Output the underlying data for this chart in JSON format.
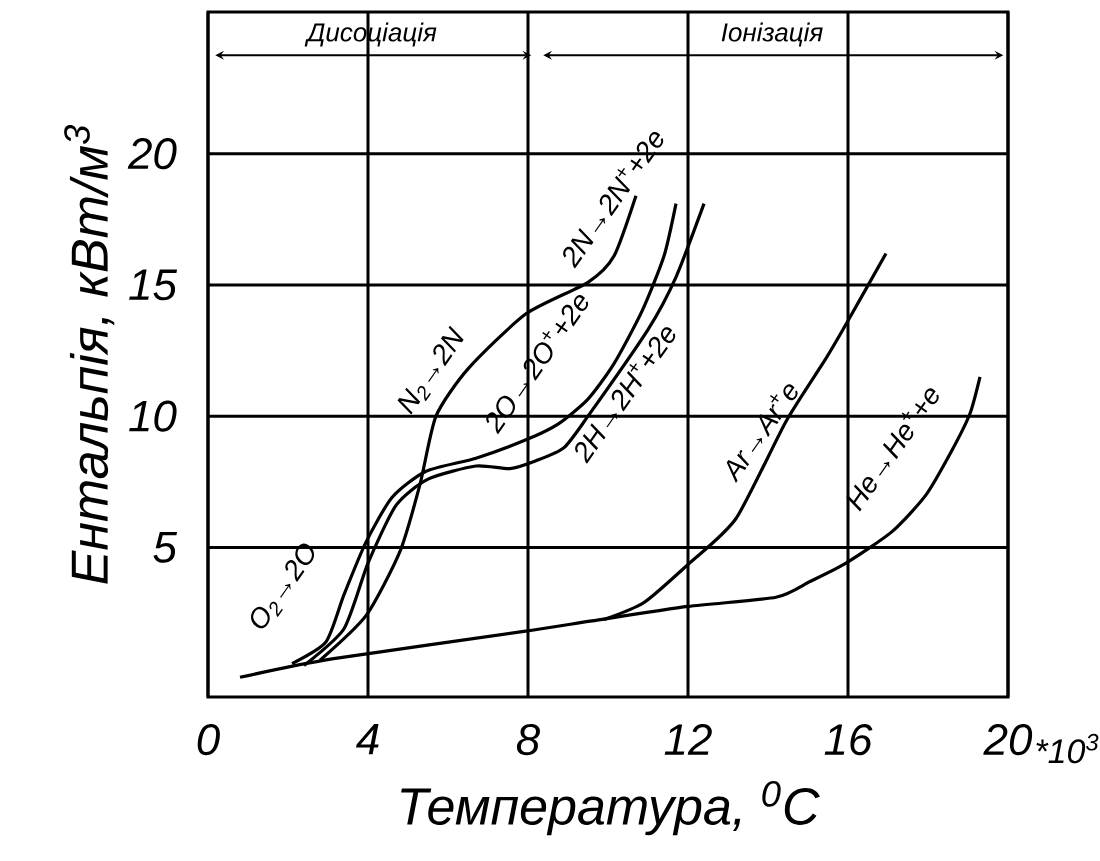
{
  "chart_data": {
    "type": "line",
    "xlabel": "Температура, $^{0}$C",
    "ylabel": "Ентальпія, кВт/м$^{3}$",
    "xlim": [
      0,
      20
    ],
    "ylim": [
      -0.7,
      25.4
    ],
    "xticks": [
      0,
      4,
      8,
      12,
      16,
      20
    ],
    "yticks": [
      5,
      10,
      15,
      20
    ],
    "grid": true,
    "marker": "none",
    "line_style": "solid",
    "series": [
      {
        "color": "#000000",
        "x": [
          0.8,
          3.1,
          7.9,
          9.6,
          12,
          14.2,
          15.05,
          15.95,
          17.1,
          17.95,
          18.6,
          19.05,
          19.3
        ],
        "values": [
          0.05,
          0.75,
          1.8,
          2.2,
          2.75,
          3.1,
          3.7,
          4.4,
          5.6,
          7.0,
          8.7,
          10.1,
          11.5
        ]
      },
      {
        "color": "#000000",
        "x": [
          9.9,
          10.9,
          12,
          13.2,
          14.45,
          15.45,
          15.95,
          16.95
        ],
        "values": [
          2.25,
          2.9,
          4.35,
          6.1,
          9.8,
          12.2,
          13.5,
          16.2
        ]
      },
      {
        "color": "#000000",
        "x": [
          2.1,
          2.95,
          3.4,
          3.95,
          4.6,
          5.45,
          6.7,
          7.95,
          8.75,
          9.5,
          10.15,
          10.85,
          11.4,
          11.7
        ],
        "values": [
          0.57,
          1.4,
          3.2,
          5.2,
          6.9,
          7.9,
          8.4,
          9.1,
          9.7,
          10.65,
          12.0,
          14.0,
          16.1,
          18.1
        ]
      },
      {
        "color": "#000000",
        "x": [
          2.4,
          3.4,
          4.0,
          4.7,
          5.5,
          6.7,
          7.55,
          8.2,
          8.9,
          9.5,
          11.0,
          11.7,
          12.4
        ],
        "values": [
          0.5,
          1.9,
          4.4,
          6.6,
          7.6,
          8.1,
          8.0,
          8.3,
          8.8,
          10.0,
          13.3,
          15.3,
          18.1
        ]
      },
      {
        "color": "#000000",
        "x": [
          2.8,
          3.95,
          4.8,
          5.3,
          5.7,
          6.5,
          7.95,
          9.5,
          10.15,
          10.7
        ],
        "values": [
          0.7,
          2.4,
          4.85,
          7.4,
          10.0,
          11.8,
          13.9,
          15.1,
          16.1,
          18.4
        ]
      }
    ],
    "annotations": [
      "O$_{2}$→2O",
      "N$_{2}$→2N",
      "2N→2N$^{+}$+2e",
      "2O→2O$^{+}$+2e",
      "2H→2H$^{+}$+2e",
      "Ar→Ar$^{+}$e",
      "He→He$^{+}$+e",
      "Дисоціація",
      "Іонізація",
      "*10$^{3}$"
    ]
  }
}
